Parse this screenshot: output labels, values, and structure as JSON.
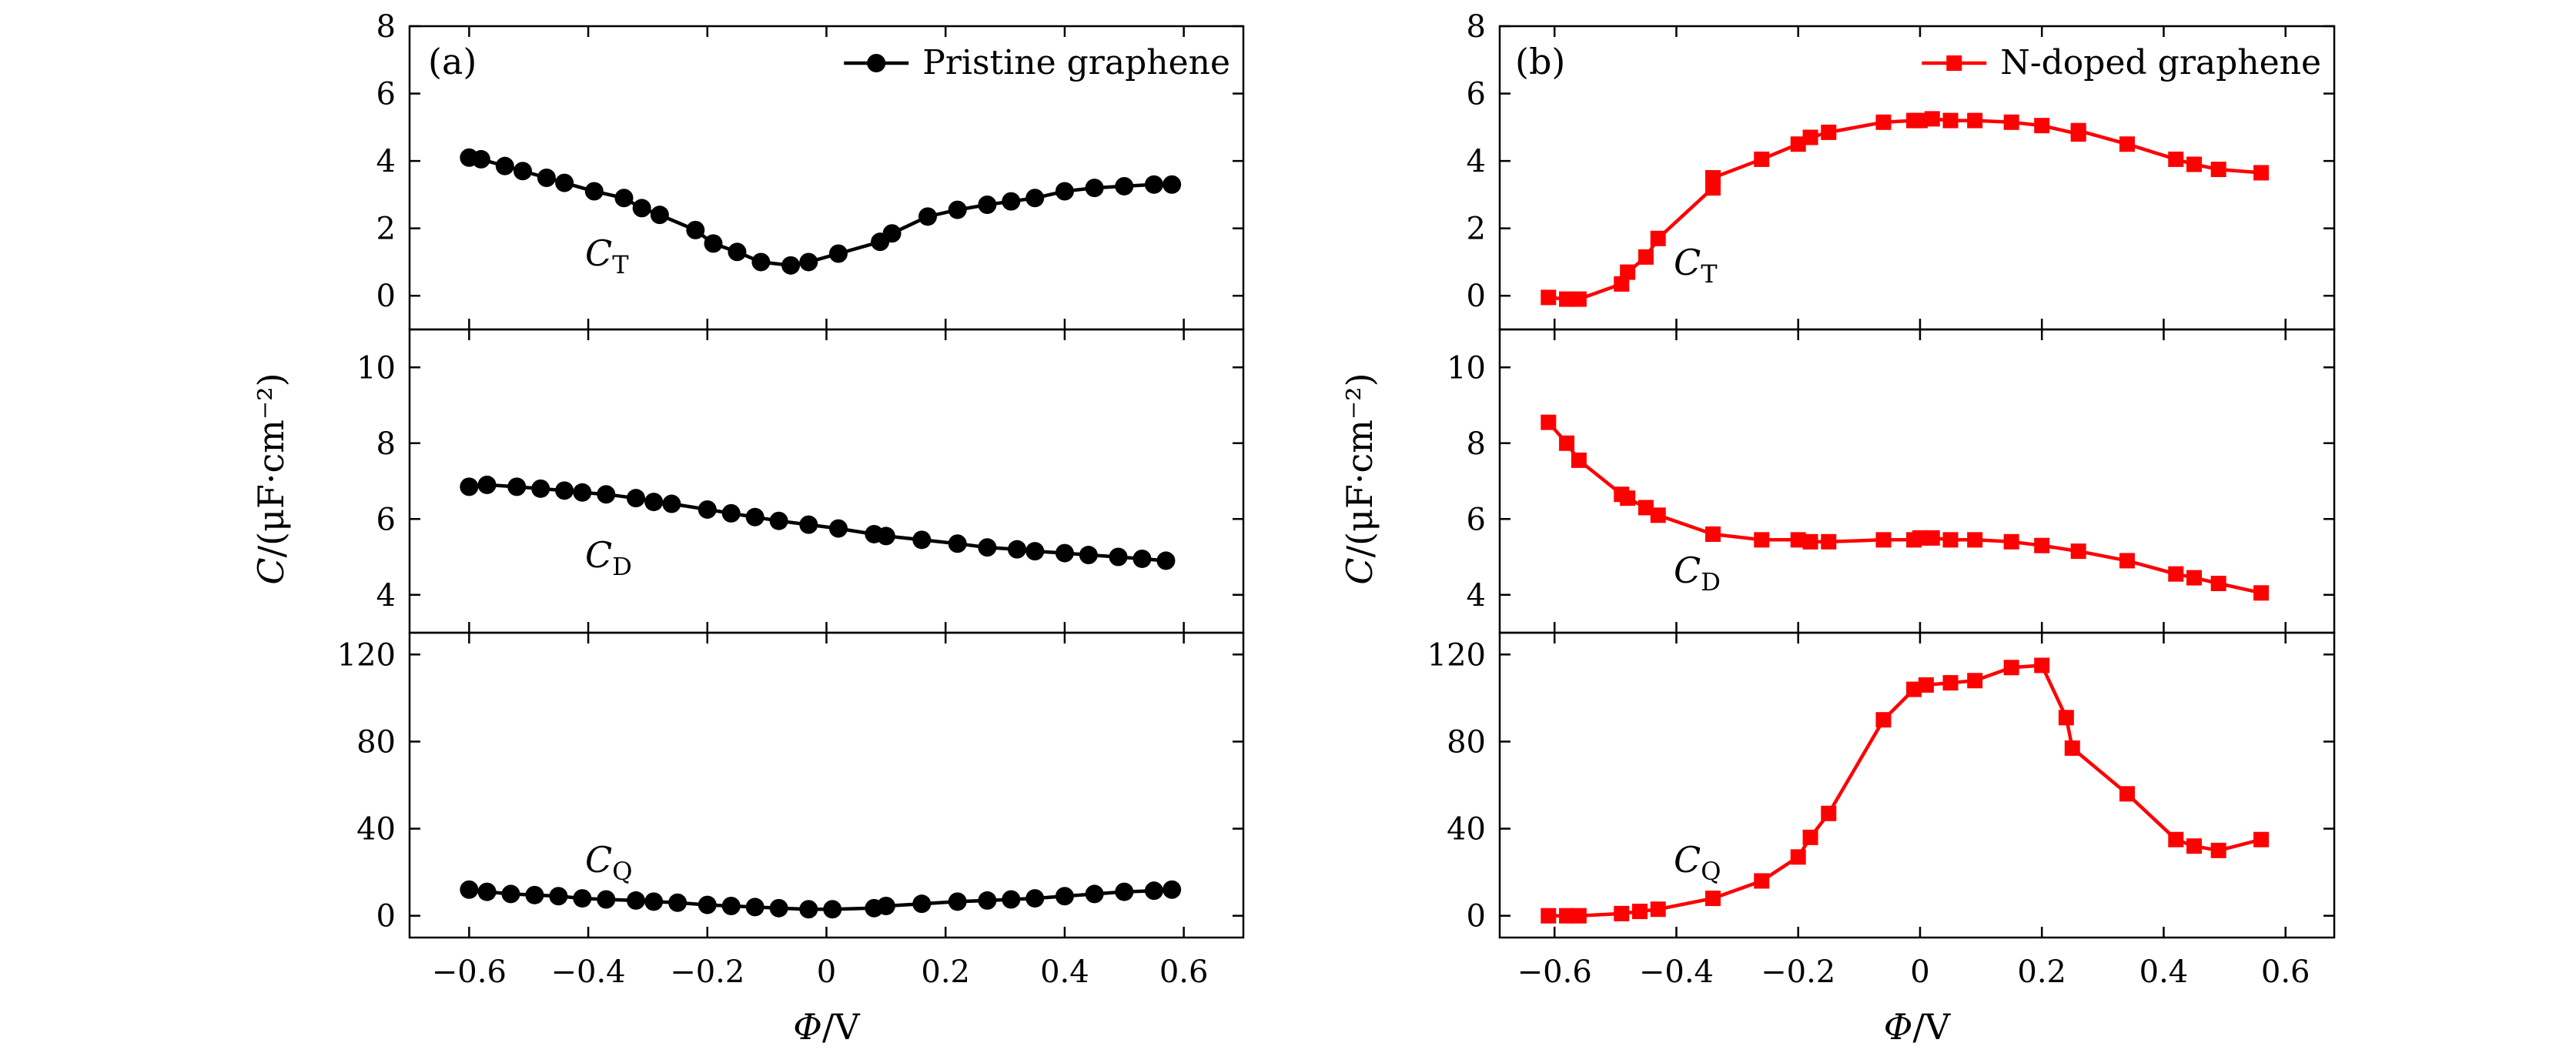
{
  "chart_data": [
    {
      "type": "line",
      "panel_label": "(a)",
      "legend": {
        "label": "Pristine graphene",
        "placement": "top-right",
        "color": "#000000",
        "marker": "circle"
      },
      "x_axis": {
        "label": "Φ/V",
        "label_symbol": "Φ",
        "label_unit": "/V",
        "range": [
          -0.7,
          0.7
        ],
        "ticks": [
          -0.6,
          -0.4,
          -0.2,
          0,
          0.2,
          0.4,
          0.6
        ],
        "tick_labels": [
          "−0.6",
          "−0.4",
          "−0.2",
          "0",
          "0.2",
          "0.4",
          "0.6"
        ]
      },
      "y_axis_label": {
        "symbol": "C",
        "unit": "/(μF·cm⁻²)"
      },
      "subplots": [
        {
          "curve_label": "C",
          "curve_sub": "T",
          "ylim": [
            -1,
            8
          ],
          "yticks": [
            0,
            2,
            4,
            6,
            8
          ],
          "x": [
            -0.6,
            -0.58,
            -0.54,
            -0.51,
            -0.47,
            -0.44,
            -0.39,
            -0.34,
            -0.31,
            -0.28,
            -0.22,
            -0.19,
            -0.15,
            -0.11,
            -0.06,
            -0.03,
            0.02,
            0.09,
            0.11,
            0.17,
            0.22,
            0.27,
            0.31,
            0.35,
            0.4,
            0.45,
            0.5,
            0.55,
            0.58
          ],
          "y": [
            4.1,
            4.05,
            3.85,
            3.7,
            3.5,
            3.35,
            3.1,
            2.9,
            2.6,
            2.4,
            1.95,
            1.55,
            1.3,
            1.0,
            0.9,
            1.0,
            1.25,
            1.6,
            1.85,
            2.35,
            2.55,
            2.7,
            2.8,
            2.9,
            3.1,
            3.2,
            3.25,
            3.3,
            3.3
          ]
        },
        {
          "curve_label": "C",
          "curve_sub": "D",
          "ylim": [
            3.0,
            11.0
          ],
          "yticks": [
            4,
            6,
            8,
            10
          ],
          "x": [
            -0.6,
            -0.57,
            -0.52,
            -0.48,
            -0.44,
            -0.41,
            -0.37,
            -0.32,
            -0.29,
            -0.26,
            -0.2,
            -0.16,
            -0.12,
            -0.08,
            -0.03,
            0.02,
            0.08,
            0.1,
            0.16,
            0.22,
            0.27,
            0.32,
            0.35,
            0.4,
            0.44,
            0.49,
            0.53,
            0.57
          ],
          "y": [
            6.85,
            6.9,
            6.85,
            6.8,
            6.75,
            6.7,
            6.65,
            6.55,
            6.45,
            6.4,
            6.25,
            6.15,
            6.05,
            5.95,
            5.85,
            5.75,
            5.6,
            5.55,
            5.45,
            5.35,
            5.25,
            5.2,
            5.15,
            5.1,
            5.05,
            5.0,
            4.95,
            4.9
          ]
        },
        {
          "curve_label": "C",
          "curve_sub": "Q",
          "ylim": [
            -10,
            130
          ],
          "yticks": [
            0,
            40,
            80,
            120
          ],
          "x": [
            -0.6,
            -0.57,
            -0.53,
            -0.49,
            -0.45,
            -0.41,
            -0.37,
            -0.32,
            -0.29,
            -0.25,
            -0.2,
            -0.16,
            -0.12,
            -0.08,
            -0.03,
            0.01,
            0.08,
            0.1,
            0.16,
            0.22,
            0.27,
            0.31,
            0.35,
            0.4,
            0.45,
            0.5,
            0.55,
            0.58
          ],
          "y": [
            12,
            11,
            10,
            9.5,
            9,
            8,
            7.5,
            7,
            6.5,
            6,
            5,
            4.5,
            4,
            3.5,
            3,
            3,
            3.5,
            4.5,
            5.5,
            6.5,
            7,
            7.5,
            8,
            9,
            10,
            11,
            11.5,
            12
          ]
        }
      ]
    },
    {
      "type": "line",
      "panel_label": "(b)",
      "legend": {
        "label": "N-doped graphene",
        "placement": "top-right",
        "color": "#ff0000",
        "marker": "square"
      },
      "x_axis": {
        "label": "Φ/V",
        "label_symbol": "Φ",
        "label_unit": "/V",
        "range": [
          -0.69,
          0.68
        ],
        "ticks": [
          -0.6,
          -0.4,
          -0.2,
          0,
          0.2,
          0.4,
          0.6
        ],
        "tick_labels": [
          "−0.6",
          "−0.4",
          "−0.2",
          "0",
          "0.2",
          "0.4",
          "0.6"
        ]
      },
      "y_axis_label": {
        "symbol": "C",
        "unit": "/(μF·cm⁻²)"
      },
      "subplots": [
        {
          "curve_label": "C",
          "curve_sub": "T",
          "ylim": [
            -1,
            8
          ],
          "yticks": [
            0,
            2,
            4,
            6,
            8
          ],
          "x": [
            -0.61,
            -0.58,
            -0.56,
            -0.49,
            -0.48,
            -0.45,
            -0.43,
            -0.34,
            -0.34,
            -0.26,
            -0.2,
            -0.18,
            -0.15,
            -0.06,
            -0.01,
            0.0,
            0.02,
            0.05,
            0.09,
            0.15,
            0.2,
            0.26,
            0.26,
            0.34,
            0.42,
            0.45,
            0.49,
            0.56
          ],
          "y": [
            -0.05,
            -0.1,
            -0.1,
            0.35,
            0.7,
            1.15,
            1.7,
            3.2,
            3.5,
            4.05,
            4.5,
            4.7,
            4.85,
            5.15,
            5.2,
            5.2,
            5.25,
            5.2,
            5.2,
            5.15,
            5.05,
            4.8,
            4.9,
            4.5,
            4.05,
            3.9,
            3.75,
            3.65
          ]
        },
        {
          "curve_label": "C",
          "curve_sub": "D",
          "ylim": [
            3.0,
            11.0
          ],
          "yticks": [
            4,
            6,
            8,
            10
          ],
          "x": [
            -0.61,
            -0.58,
            -0.56,
            -0.49,
            -0.48,
            -0.45,
            -0.43,
            -0.34,
            -0.26,
            -0.2,
            -0.18,
            -0.15,
            -0.06,
            -0.01,
            0.0,
            0.02,
            0.05,
            0.09,
            0.15,
            0.2,
            0.26,
            0.34,
            0.42,
            0.45,
            0.49,
            0.56
          ],
          "y": [
            8.55,
            8.0,
            7.55,
            6.65,
            6.55,
            6.3,
            6.1,
            5.6,
            5.45,
            5.45,
            5.4,
            5.4,
            5.45,
            5.45,
            5.5,
            5.5,
            5.45,
            5.45,
            5.4,
            5.3,
            5.15,
            4.9,
            4.55,
            4.45,
            4.3,
            4.05
          ]
        },
        {
          "curve_label": "C",
          "curve_sub": "Q",
          "ylim": [
            -10,
            130
          ],
          "yticks": [
            0,
            40,
            80,
            120
          ],
          "x": [
            -0.61,
            -0.58,
            -0.56,
            -0.49,
            -0.46,
            -0.43,
            -0.34,
            -0.26,
            -0.2,
            -0.18,
            -0.15,
            -0.06,
            -0.01,
            0.01,
            0.05,
            0.09,
            0.15,
            0.2,
            0.24,
            0.25,
            0.34,
            0.42,
            0.45,
            0.49,
            0.56
          ],
          "y": [
            0,
            0,
            0,
            1,
            2,
            3,
            8,
            16,
            27,
            36,
            47,
            90,
            104,
            106,
            107,
            108,
            114,
            115,
            91,
            77,
            56,
            35,
            32,
            30,
            35
          ]
        }
      ]
    }
  ]
}
